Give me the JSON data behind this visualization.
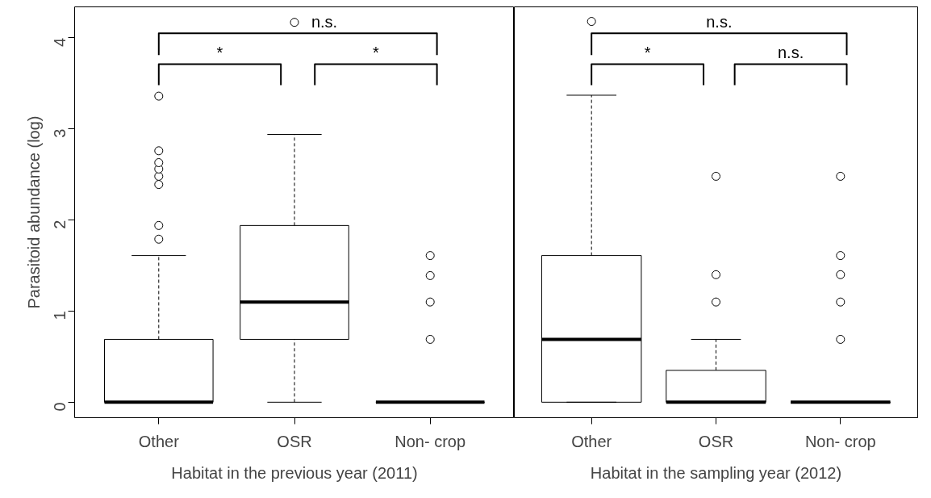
{
  "chart_data": [
    {
      "type": "box",
      "categories": [
        "Other",
        "OSR",
        "Non- crop"
      ],
      "xlabel": "Habitat in the previous year (2011)",
      "ylabel": "Parasitoid abundance (log)",
      "ylim": [
        -0.17,
        4.34
      ],
      "yticks": [
        0,
        1,
        2,
        3,
        4
      ],
      "marker": "circle",
      "boxes": [
        {
          "low": 0,
          "q1": 0,
          "median": 0,
          "q3": 0.69,
          "high": 1.61,
          "outliers": [
            1.79,
            1.94,
            2.39,
            2.48,
            2.56,
            2.63,
            2.76,
            3.36
          ]
        },
        {
          "low": 0,
          "q1": 0.69,
          "median": 1.1,
          "q3": 1.94,
          "high": 2.94,
          "outliers": [
            4.17
          ]
        },
        {
          "low": 0,
          "q1": 0,
          "median": 0,
          "q3": 0,
          "high": 0,
          "outliers": [
            0.69,
            1.1,
            1.39,
            1.61
          ]
        }
      ],
      "annotations": [
        "*",
        "*",
        "n.s."
      ]
    },
    {
      "type": "box",
      "categories": [
        "Other",
        "OSR",
        "Non- crop"
      ],
      "xlabel": "Habitat in the sampling year (2012)",
      "ylim": [
        -0.17,
        4.34
      ],
      "yticks": [
        0,
        1,
        2,
        3,
        4
      ],
      "marker": "circle",
      "tick_labels": "x",
      "boxes": [
        {
          "low": 0,
          "q1": 0,
          "median": 0.69,
          "q3": 1.61,
          "high": 3.37,
          "outliers": [
            4.18
          ]
        },
        {
          "low": 0,
          "q1": 0,
          "median": 0,
          "q3": 0.35,
          "high": 0.69,
          "outliers": [
            1.1,
            1.4,
            2.48
          ]
        },
        {
          "low": 0,
          "q1": 0,
          "median": 0,
          "q3": 0,
          "high": 0,
          "outliers": [
            0.69,
            1.1,
            1.4,
            1.61,
            2.48
          ]
        }
      ],
      "annotations": [
        "*",
        "n.s.",
        "n.s."
      ]
    }
  ]
}
